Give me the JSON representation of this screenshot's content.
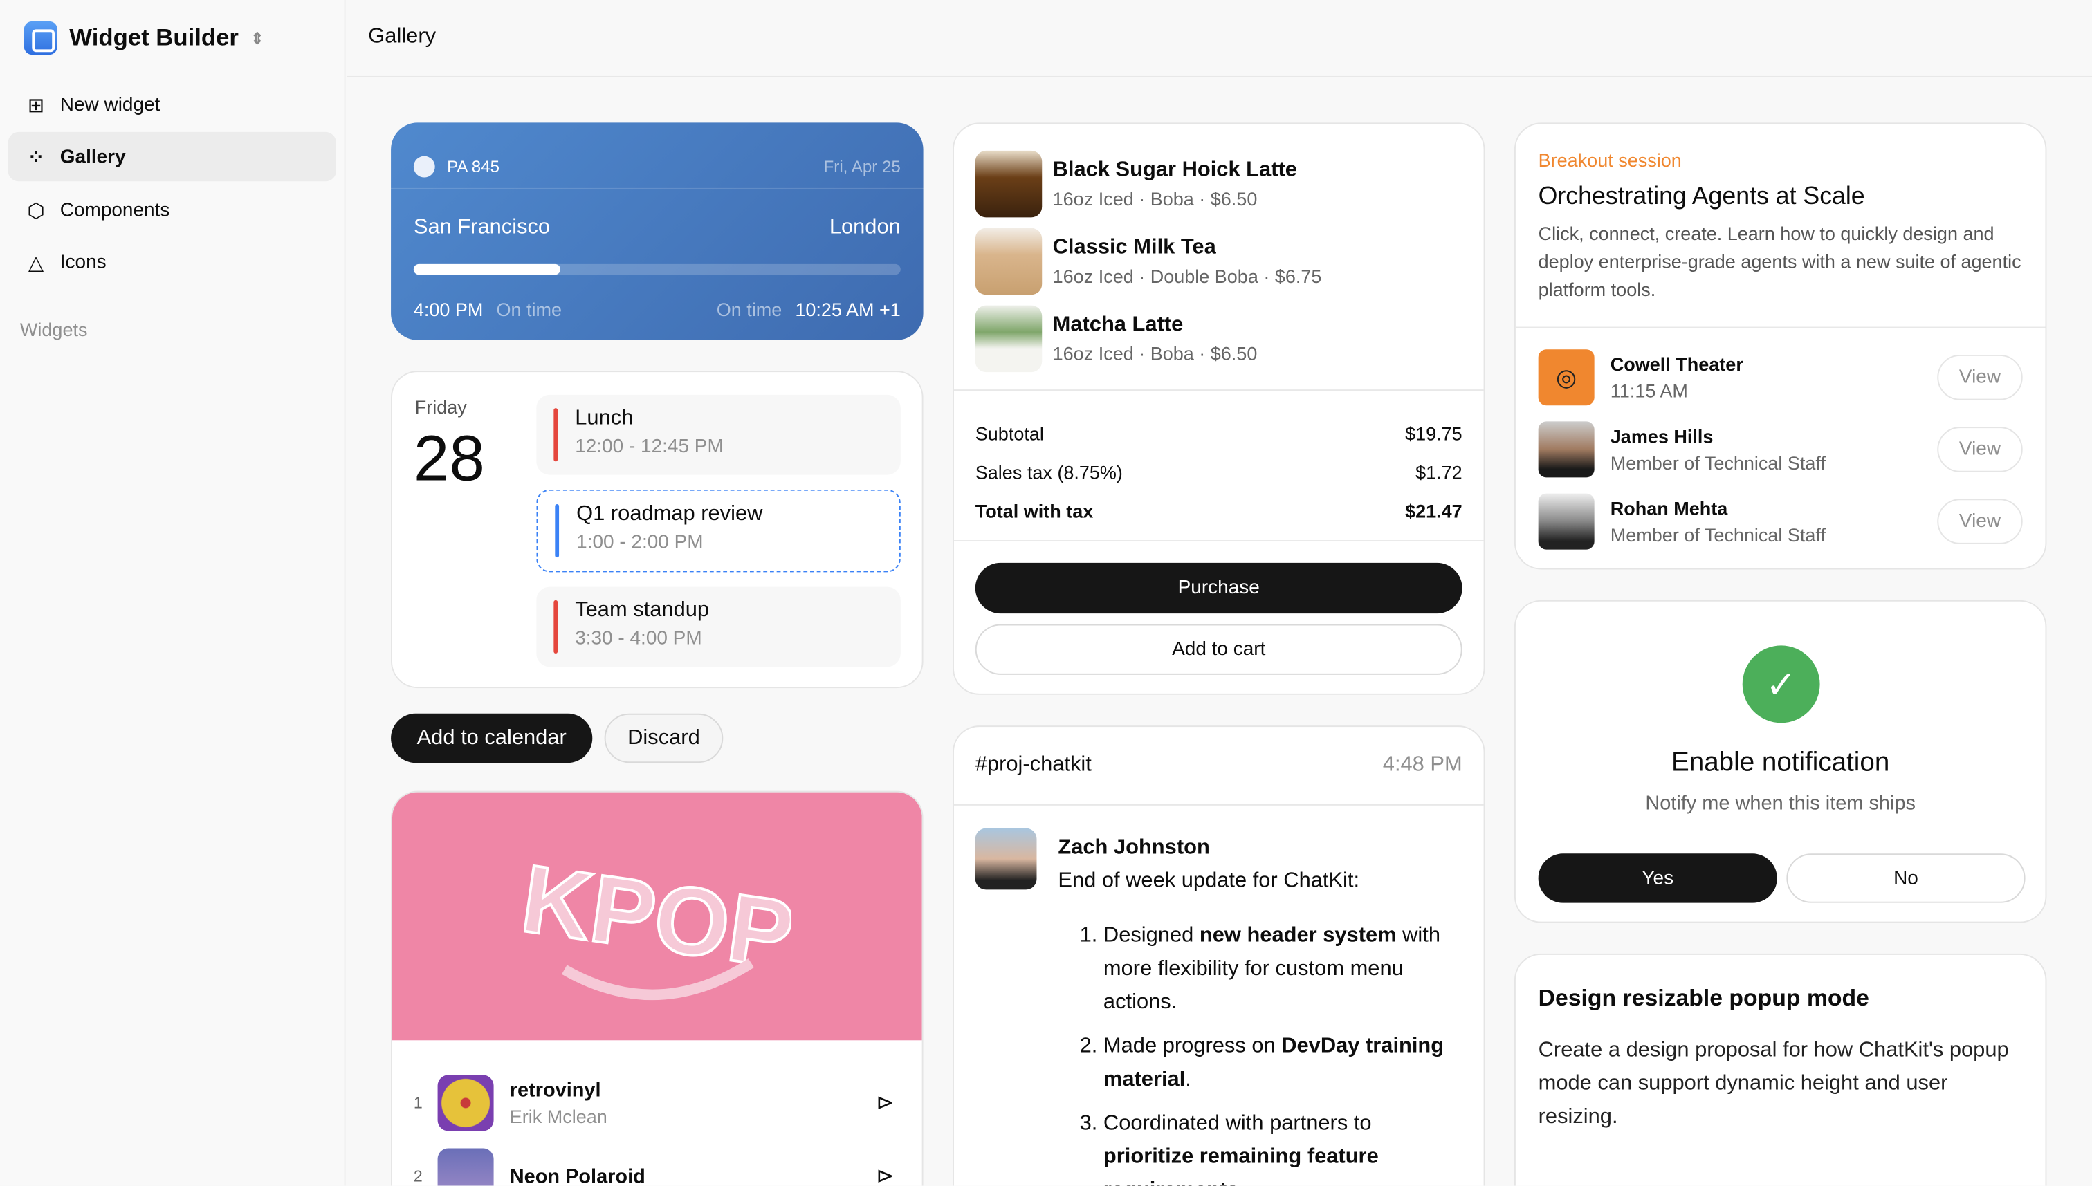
{
  "app": {
    "title": "Widget Builder",
    "header_title": "Gallery"
  },
  "sidebar": {
    "items": [
      {
        "label": "New widget",
        "icon": "plus-square-icon"
      },
      {
        "label": "Gallery",
        "icon": "grid-icon"
      },
      {
        "label": "Components",
        "icon": "cube-icon"
      },
      {
        "label": "Icons",
        "icon": "shapes-icon"
      }
    ],
    "section": "Widgets"
  },
  "flight": {
    "code": "PA 845",
    "date": "Fri, Apr 25",
    "from": "San Francisco",
    "to": "London",
    "progress": 0.3,
    "depart": "4:00 PM",
    "depart_status": "On time",
    "arrive_status": "On time",
    "arrive": "10:25 AM +1"
  },
  "calendar": {
    "day": "Friday",
    "date": "28",
    "events": [
      {
        "title": "Lunch",
        "time": "12:00 - 12:45 PM",
        "color": "#e5473d"
      },
      {
        "title": "Q1 roadmap review",
        "time": "1:00 - 2:00 PM",
        "color": "#3b82f6"
      },
      {
        "title": "Team standup",
        "time": "3:30 - 4:00 PM",
        "color": "#e5473d"
      }
    ],
    "add_label": "Add to calendar",
    "discard_label": "Discard"
  },
  "music": {
    "tracks": [
      {
        "n": "1",
        "title": "retrovinyl",
        "artist": "Erik Mclean"
      },
      {
        "n": "2",
        "title": "Neon Polaroid",
        "artist": ""
      }
    ]
  },
  "order": {
    "items": [
      {
        "name": "Black Sugar Hoick Latte",
        "detail": "16oz Iced · Boba · $6.50"
      },
      {
        "name": "Classic Milk Tea",
        "detail": "16oz Iced · Double Boba · $6.75"
      },
      {
        "name": "Matcha Latte",
        "detail": "16oz Iced · Boba · $6.50"
      }
    ],
    "subtotal_label": "Subtotal",
    "subtotal": "$19.75",
    "tax_label": "Sales tax (8.75%)",
    "tax": "$1.72",
    "total_label": "Total with tax",
    "total": "$21.47",
    "purchase": "Purchase",
    "add_to_cart": "Add to cart"
  },
  "chat": {
    "channel": "#proj-chatkit",
    "time": "4:48 PM",
    "author": "Zach Johnston",
    "message": "End of week update for ChatKit:",
    "list": [
      {
        "a": "Designed ",
        "b": "new header system",
        "c": " with more flexibility for custom menu actions."
      },
      {
        "a": "Made progress on ",
        "b": "DevDay training material",
        "c": "."
      },
      {
        "a": "Coordinated with partners to ",
        "b": "prioritize remaining feature requirements",
        "c": ""
      }
    ]
  },
  "session": {
    "eyebrow": "Breakout session",
    "title": "Orchestrating Agents at Scale",
    "desc": "Click, connect, create. Learn how to quickly design and deploy enterprise-grade agents with a new suite of agentic platform tools.",
    "rows": [
      {
        "name": "Cowell Theater",
        "sub": "11:15 AM",
        "action": "View"
      },
      {
        "name": "James Hills",
        "sub": "Member of Technical Staff",
        "action": "View"
      },
      {
        "name": "Rohan Mehta",
        "sub": "Member of Technical Staff",
        "action": "View"
      }
    ],
    "accent": "#f0872f"
  },
  "notify": {
    "title": "Enable notification",
    "sub": "Notify me when this item ships",
    "yes": "Yes",
    "no": "No"
  },
  "task": {
    "title": "Design resizable popup mode",
    "desc": "Create a design proposal for how ChatKit's popup mode can support dynamic height and user resizing."
  }
}
